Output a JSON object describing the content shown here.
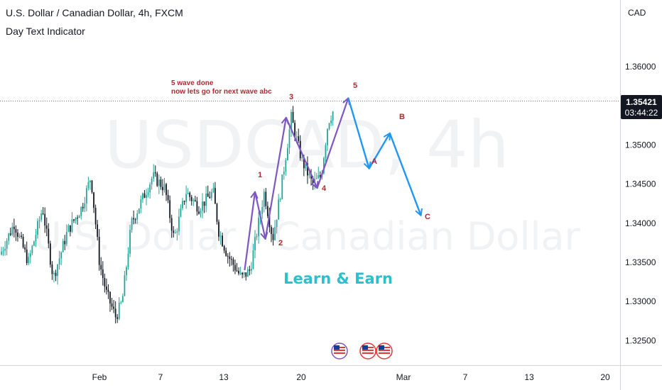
{
  "header": {
    "title": "U.S. Dollar / Canadian Dollar, 4h, FXCM",
    "indicator": "Day Text Indicator"
  },
  "watermark": {
    "symbol": "USDCAD, 4h",
    "name": "U.S. Dollar / Canadian Dollar"
  },
  "price_axis": {
    "currency": "CAD",
    "ticks": [
      "1.36000",
      "1.35500",
      "1.35000",
      "1.34500",
      "1.34000",
      "1.33500",
      "1.33000",
      "1.32500"
    ],
    "last_price": "1.35421",
    "countdown": "03:44:22"
  },
  "time_axis": {
    "ticks": [
      "Feb",
      "7",
      "13",
      "20",
      "Mar",
      "7",
      "13",
      "20"
    ]
  },
  "annotation": {
    "line1": "5 wave done",
    "line2": "now lets go for next wave abc"
  },
  "promo": "Learn & Earn",
  "wave_labels": [
    "1",
    "2",
    "3",
    "4",
    "5",
    "A",
    "B",
    "C"
  ],
  "colors": {
    "bull_candle": "#26a69a",
    "bear_candle": "#131722",
    "impulse_line": "#7e57c2",
    "correction_line": "#2196f3",
    "label_red": "#b22833",
    "promo_text": "#2dbfce"
  },
  "icons": [
    "usa-flag-icon",
    "usa-flag-icon",
    "usa-flag-icon"
  ],
  "chart_data": {
    "type": "candlestick",
    "title": "U.S. Dollar / Canadian Dollar, 4h, FXCM",
    "ylabel": "CAD",
    "ylim": [
      1.3215,
      1.364
    ],
    "grid": false,
    "last_price": 1.35421,
    "elliott_waves": {
      "impulse": [
        {
          "label": "",
          "date": "Feb 15",
          "price": 1.334
        },
        {
          "label": "1",
          "date": "Feb 16",
          "price": 1.344
        },
        {
          "label": "2",
          "date": "Feb 17",
          "price": 1.338
        },
        {
          "label": "3",
          "date": "Feb 19",
          "price": 1.3535
        },
        {
          "label": "4",
          "date": "Feb 22",
          "price": 1.3445
        },
        {
          "label": "5",
          "date": "Feb 25",
          "price": 1.356
        }
      ],
      "correction": [
        {
          "label": "",
          "date": "Feb 25",
          "price": 1.356
        },
        {
          "label": "A",
          "date": "Feb 27",
          "price": 1.347
        },
        {
          "label": "B",
          "date": "Feb 29",
          "price": 1.3515
        },
        {
          "label": "C",
          "date": "Mar 3",
          "price": 1.341
        }
      ]
    }
  }
}
